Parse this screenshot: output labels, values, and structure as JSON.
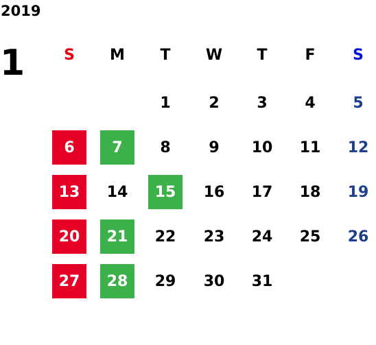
{
  "year": "2019",
  "month": "1",
  "weekdays": [
    {
      "text": "S",
      "color": "#e60012"
    },
    {
      "text": "M"
    },
    {
      "text": "T"
    },
    {
      "text": "W"
    },
    {
      "text": "T"
    },
    {
      "text": "F"
    },
    {
      "text": "S",
      "color": "#0014d9"
    }
  ],
  "weeks": [
    [
      null,
      null,
      {
        "text": "1"
      },
      {
        "text": "2"
      },
      {
        "text": "3"
      },
      {
        "text": "4"
      },
      {
        "text": "5",
        "color": "#1d3f8c"
      }
    ],
    [
      {
        "text": "6",
        "color": "#ffffff",
        "bg": "#e60026"
      },
      {
        "text": "7",
        "color": "#ffffff",
        "bg": "#3cb14a"
      },
      {
        "text": "8"
      },
      {
        "text": "9"
      },
      {
        "text": "10"
      },
      {
        "text": "11"
      },
      {
        "text": "12",
        "color": "#1d3f8c"
      }
    ],
    [
      {
        "text": "13",
        "color": "#ffffff",
        "bg": "#e60026"
      },
      {
        "text": "14"
      },
      {
        "text": "15",
        "color": "#ffffff",
        "bg": "#3cb14a"
      },
      {
        "text": "16"
      },
      {
        "text": "17"
      },
      {
        "text": "18"
      },
      {
        "text": "19",
        "color": "#1d3f8c"
      }
    ],
    [
      {
        "text": "20",
        "color": "#ffffff",
        "bg": "#e60026"
      },
      {
        "text": "21",
        "color": "#ffffff",
        "bg": "#3cb14a"
      },
      {
        "text": "22"
      },
      {
        "text": "23"
      },
      {
        "text": "24"
      },
      {
        "text": "25"
      },
      {
        "text": "26",
        "color": "#1d3f8c"
      }
    ],
    [
      {
        "text": "27",
        "color": "#ffffff",
        "bg": "#e60026"
      },
      {
        "text": "28",
        "color": "#ffffff",
        "bg": "#3cb14a"
      },
      {
        "text": "29"
      },
      {
        "text": "30"
      },
      {
        "text": "31"
      },
      null,
      null
    ]
  ]
}
